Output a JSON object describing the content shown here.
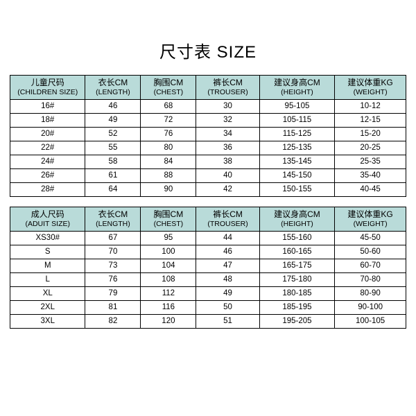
{
  "title": "尺寸表 SIZE",
  "header_bg": "#b9dbd9",
  "border_color": "#000000",
  "background_color": "#ffffff",
  "title_fontsize": 24,
  "children_table": {
    "type": "table",
    "columns": [
      {
        "cn": "儿童尺码",
        "en": "(CHILDREN SIZE)"
      },
      {
        "cn": "衣长CM",
        "en": "(LENGTH)"
      },
      {
        "cn": "胸围CM",
        "en": "(CHEST)"
      },
      {
        "cn": "裤长CM",
        "en": "(TROUSER)"
      },
      {
        "cn": "建议身高CM",
        "en": "(HEIGHT)"
      },
      {
        "cn": "建议体重KG",
        "en": "(WEIGHT)"
      }
    ],
    "rows": [
      [
        "16#",
        "46",
        "68",
        "30",
        "95-105",
        "10-12"
      ],
      [
        "18#",
        "49",
        "72",
        "32",
        "105-115",
        "12-15"
      ],
      [
        "20#",
        "52",
        "76",
        "34",
        "115-125",
        "15-20"
      ],
      [
        "22#",
        "55",
        "80",
        "36",
        "125-135",
        "20-25"
      ],
      [
        "24#",
        "58",
        "84",
        "38",
        "135-145",
        "25-35"
      ],
      [
        "26#",
        "61",
        "88",
        "40",
        "145-150",
        "35-40"
      ],
      [
        "28#",
        "64",
        "90",
        "42",
        "150-155",
        "40-45"
      ]
    ]
  },
  "adult_table": {
    "type": "table",
    "columns": [
      {
        "cn": "成人尺码",
        "en": "(ADUIT SIZE)"
      },
      {
        "cn": "衣长CM",
        "en": "(LENGTH)"
      },
      {
        "cn": "胸围CM",
        "en": "(CHEST)"
      },
      {
        "cn": "裤长CM",
        "en": "(TROUSER)"
      },
      {
        "cn": "建议身高CM",
        "en": "(HEIGHT)"
      },
      {
        "cn": "建议体重KG",
        "en": "(WEIGHT)"
      }
    ],
    "rows": [
      [
        "XS30#",
        "67",
        "95",
        "44",
        "155-160",
        "45-50"
      ],
      [
        "S",
        "70",
        "100",
        "46",
        "160-165",
        "50-60"
      ],
      [
        "M",
        "73",
        "104",
        "47",
        "165-175",
        "60-70"
      ],
      [
        "L",
        "76",
        "108",
        "48",
        "175-180",
        "70-80"
      ],
      [
        "XL",
        "79",
        "112",
        "49",
        "180-185",
        "80-90"
      ],
      [
        "2XL",
        "81",
        "116",
        "50",
        "185-195",
        "90-100"
      ],
      [
        "3XL",
        "82",
        "120",
        "51",
        "195-205",
        "100-105"
      ]
    ]
  }
}
